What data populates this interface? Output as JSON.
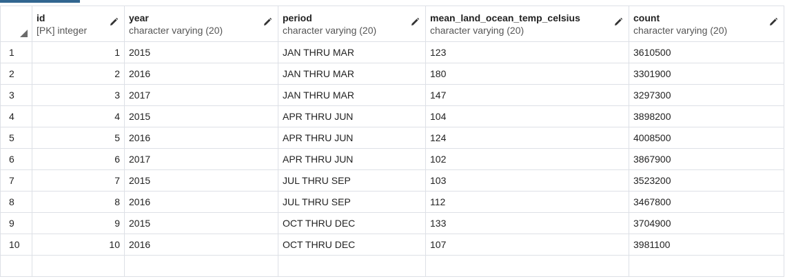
{
  "columns": [
    {
      "name": "id",
      "type": "[PK] integer"
    },
    {
      "name": "year",
      "type": "character varying (20)"
    },
    {
      "name": "period",
      "type": "character varying (20)"
    },
    {
      "name": "mean_land_ocean_temp_celsius",
      "type": "character varying (20)"
    },
    {
      "name": "count",
      "type": "character varying (20)"
    }
  ],
  "rows": [
    {
      "rownum": "1",
      "id": "1",
      "year": "2015",
      "period": "JAN THRU MAR",
      "mean": "123",
      "count": "3610500"
    },
    {
      "rownum": "2",
      "id": "2",
      "year": "2016",
      "period": "JAN THRU MAR",
      "mean": "180",
      "count": "3301900"
    },
    {
      "rownum": "3",
      "id": "3",
      "year": "2017",
      "period": "JAN THRU MAR",
      "mean": "147",
      "count": "3297300"
    },
    {
      "rownum": "4",
      "id": "4",
      "year": "2015",
      "period": "APR THRU JUN",
      "mean": "104",
      "count": "3898200"
    },
    {
      "rownum": "5",
      "id": "5",
      "year": "2016",
      "period": "APR THRU JUN",
      "mean": "124",
      "count": "4008500"
    },
    {
      "rownum": "6",
      "id": "6",
      "year": "2017",
      "period": "APR THRU JUN",
      "mean": "102",
      "count": "3867900"
    },
    {
      "rownum": "7",
      "id": "7",
      "year": "2015",
      "period": "JUL THRU SEP",
      "mean": "103",
      "count": "3523200"
    },
    {
      "rownum": "8",
      "id": "8",
      "year": "2016",
      "period": "JUL THRU SEP",
      "mean": "112",
      "count": "3467800"
    },
    {
      "rownum": "9",
      "id": "9",
      "year": "2015",
      "period": "OCT THRU DEC",
      "mean": "133",
      "count": "3704900"
    },
    {
      "rownum": "10",
      "id": "10",
      "year": "2016",
      "period": "OCT THRU DEC",
      "mean": "107",
      "count": "3981100"
    }
  ],
  "icons": {
    "edit": "pencil-icon",
    "corner": "select-all-triangle-icon"
  },
  "colors": {
    "accent": "#326690",
    "grid_line": "#dde0e6",
    "text": "#222222",
    "type_text": "#555555"
  }
}
